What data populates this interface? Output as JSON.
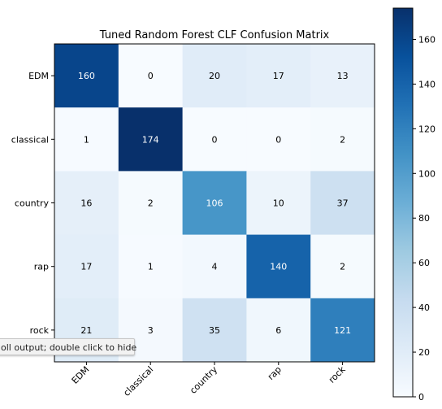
{
  "chart_data": {
    "type": "heatmap",
    "title": "Tuned Random Forest CLF Confusion Matrix",
    "row_labels": [
      "EDM",
      "classical",
      "country",
      "rap",
      "rock"
    ],
    "col_labels": [
      "EDM",
      "classical",
      "country",
      "rap",
      "rock"
    ],
    "values": [
      [
        160,
        0,
        20,
        17,
        13
      ],
      [
        1,
        174,
        0,
        0,
        2
      ],
      [
        16,
        2,
        106,
        10,
        37
      ],
      [
        17,
        1,
        4,
        140,
        2
      ],
      [
        21,
        3,
        35,
        6,
        121
      ]
    ],
    "colormap": "Blues",
    "colorbar": {
      "min": 0,
      "max": 174,
      "ticks": [
        0,
        20,
        40,
        60,
        80,
        100,
        120,
        140,
        160
      ]
    },
    "grid": false
  },
  "overlay": {
    "tooltip_text": "oll output; double click to hide"
  }
}
